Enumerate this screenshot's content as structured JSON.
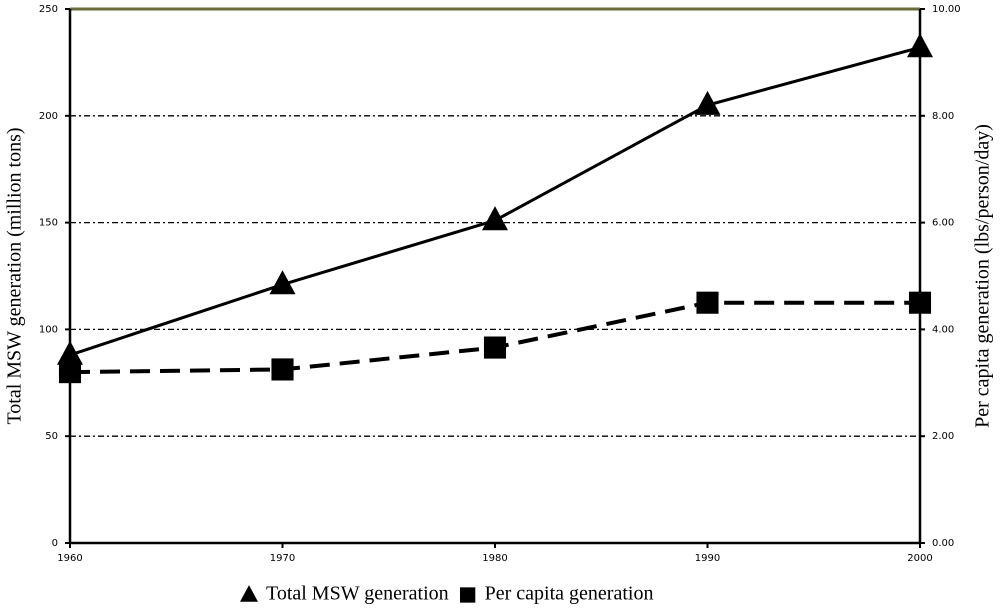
{
  "chart_data": {
    "type": "line",
    "x": [
      1960,
      1970,
      1980,
      1990,
      2000
    ],
    "xlim": [
      1960,
      2000
    ],
    "xticks": [
      1960,
      1970,
      1980,
      1990,
      2000
    ],
    "ylabel": "Total MSW generation (million tons)",
    "y2label": "Per capita generation (lbs/person/day)",
    "ylim": [
      0,
      250
    ],
    "yticks": [
      0,
      50,
      100,
      150,
      200,
      250
    ],
    "y2lim": [
      0,
      10
    ],
    "y2ticks": [
      {
        "value": 0,
        "label": "0.00"
      },
      {
        "value": 2,
        "label": "2.00"
      },
      {
        "value": 4,
        "label": "4.00"
      },
      {
        "value": 6,
        "label": "6.00"
      },
      {
        "value": 8,
        "label": "8.00"
      },
      {
        "value": 10,
        "label": "10.00"
      }
    ],
    "grid": true,
    "legend": "bottom",
    "series": [
      {
        "name": "Total MSW generation",
        "color": "#000000",
        "marker": "triangle",
        "line_style": "solid",
        "axis": "y",
        "values": [
          88,
          121,
          151,
          205,
          232
        ]
      },
      {
        "name": "Per capita generation",
        "color": "#000000",
        "marker": "square",
        "line_style": "dashed",
        "axis": "y2",
        "values": [
          3.2,
          3.25,
          3.66,
          4.5,
          4.5
        ]
      }
    ]
  }
}
